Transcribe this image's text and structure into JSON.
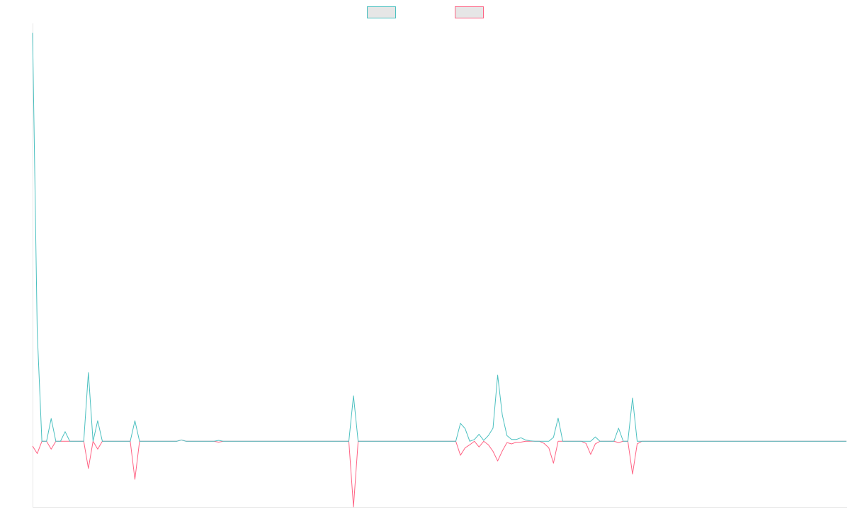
{
  "chart_data": {
    "type": "line",
    "title": "",
    "xlabel": "",
    "ylabel": "",
    "grid": false,
    "legend": {
      "placement": "top-center"
    },
    "x_count": 176,
    "ylim": [
      -150,
      950
    ],
    "series": [
      {
        "color": "#4bc0c0",
        "fill": "#e6e6e6",
        "points": [
          [
            0,
            933
          ],
          [
            1,
            250
          ],
          [
            2,
            0
          ],
          [
            3,
            0
          ],
          [
            4,
            52
          ],
          [
            5,
            0
          ],
          [
            6,
            0
          ],
          [
            7,
            22
          ],
          [
            8,
            0
          ],
          [
            9,
            0
          ],
          [
            10,
            0
          ],
          [
            11,
            0
          ],
          [
            12,
            157
          ],
          [
            13,
            0
          ],
          [
            14,
            47
          ],
          [
            15,
            0
          ],
          [
            16,
            0
          ],
          [
            17,
            0
          ],
          [
            18,
            0
          ],
          [
            19,
            0
          ],
          [
            20,
            0
          ],
          [
            21,
            0
          ],
          [
            22,
            47
          ],
          [
            23,
            0
          ],
          [
            24,
            0
          ],
          [
            31,
            0
          ],
          [
            32,
            3
          ],
          [
            33,
            0
          ],
          [
            39,
            0
          ],
          [
            40,
            2
          ],
          [
            41,
            0
          ],
          [
            68,
            0
          ],
          [
            69,
            104
          ],
          [
            70,
            0
          ],
          [
            91,
            0
          ],
          [
            92,
            41
          ],
          [
            93,
            29
          ],
          [
            94,
            0
          ],
          [
            95,
            4
          ],
          [
            96,
            16
          ],
          [
            97,
            2
          ],
          [
            98,
            13
          ],
          [
            99,
            30
          ],
          [
            100,
            151
          ],
          [
            101,
            60
          ],
          [
            102,
            13
          ],
          [
            103,
            4
          ],
          [
            104,
            4
          ],
          [
            105,
            8
          ],
          [
            106,
            3
          ],
          [
            107,
            1
          ],
          [
            108,
            0
          ],
          [
            109,
            0
          ],
          [
            110,
            0
          ],
          [
            111,
            0
          ],
          [
            112,
            9
          ],
          [
            113,
            53
          ],
          [
            114,
            0
          ],
          [
            115,
            0
          ],
          [
            117,
            0
          ],
          [
            118,
            0
          ],
          [
            119,
            0
          ],
          [
            120,
            0
          ],
          [
            121,
            10
          ],
          [
            122,
            0
          ],
          [
            123,
            0
          ],
          [
            124,
            0
          ],
          [
            125,
            0
          ],
          [
            126,
            30
          ],
          [
            127,
            0
          ],
          [
            128,
            0
          ],
          [
            129,
            99
          ],
          [
            130,
            0
          ],
          [
            131,
            0
          ],
          [
            175,
            0
          ]
        ]
      },
      {
        "color": "#ff6384",
        "fill": "#e6e6e6",
        "points": [
          [
            0,
            -11
          ],
          [
            1,
            -28
          ],
          [
            2,
            0
          ],
          [
            3,
            0
          ],
          [
            4,
            -18
          ],
          [
            5,
            0
          ],
          [
            6,
            0
          ],
          [
            7,
            0
          ],
          [
            8,
            0
          ],
          [
            9,
            0
          ],
          [
            10,
            0
          ],
          [
            11,
            0
          ],
          [
            12,
            -62
          ],
          [
            13,
            0
          ],
          [
            14,
            -18
          ],
          [
            15,
            0
          ],
          [
            16,
            0
          ],
          [
            17,
            0
          ],
          [
            18,
            0
          ],
          [
            19,
            0
          ],
          [
            20,
            0
          ],
          [
            21,
            0
          ],
          [
            22,
            -87
          ],
          [
            23,
            0
          ],
          [
            24,
            0
          ],
          [
            31,
            0
          ],
          [
            32,
            3
          ],
          [
            33,
            0
          ],
          [
            39,
            0
          ],
          [
            40,
            -2
          ],
          [
            41,
            0
          ],
          [
            68,
            0
          ],
          [
            69,
            -150
          ],
          [
            70,
            0
          ],
          [
            91,
            0
          ],
          [
            92,
            -32
          ],
          [
            93,
            -15
          ],
          [
            94,
            -8
          ],
          [
            95,
            0
          ],
          [
            96,
            -13
          ],
          [
            97,
            0
          ],
          [
            98,
            -8
          ],
          [
            99,
            -23
          ],
          [
            100,
            -45
          ],
          [
            101,
            -22
          ],
          [
            102,
            -3
          ],
          [
            103,
            -6
          ],
          [
            104,
            -2
          ],
          [
            105,
            -2
          ],
          [
            106,
            0
          ],
          [
            107,
            0
          ],
          [
            108,
            0
          ],
          [
            109,
            0
          ],
          [
            110,
            -5
          ],
          [
            111,
            -15
          ],
          [
            112,
            -50
          ],
          [
            113,
            0
          ],
          [
            114,
            0
          ],
          [
            115,
            0
          ],
          [
            117,
            0
          ],
          [
            118,
            0
          ],
          [
            119,
            -5
          ],
          [
            120,
            -30
          ],
          [
            121,
            -6
          ],
          [
            122,
            0
          ],
          [
            123,
            0
          ],
          [
            124,
            0
          ],
          [
            125,
            0
          ],
          [
            126,
            -3
          ],
          [
            127,
            0
          ],
          [
            128,
            0
          ],
          [
            129,
            -75
          ],
          [
            130,
            -6
          ],
          [
            131,
            0
          ],
          [
            175,
            0
          ]
        ]
      }
    ]
  }
}
